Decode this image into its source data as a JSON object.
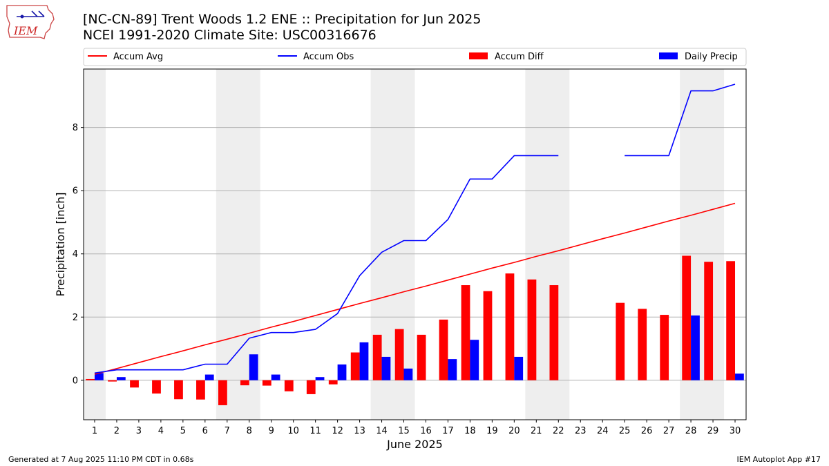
{
  "header": {
    "title_line1": "[NC-CN-89] Trent Woods 1.2 ENE :: Precipitation for Jun 2025",
    "title_line2": "NCEI 1991-2020 Climate Site: USC00316676",
    "logo_text": "IEM"
  },
  "footer": {
    "left": "Generated at 7 Aug 2025 11:10 PM CDT in 0.68s",
    "right": "IEM Autoplot App #17"
  },
  "colors": {
    "accum_avg": "#ff0000",
    "accum_obs": "#0000ff",
    "accum_diff": "#ff0000",
    "daily_precip": "#0000ff",
    "weekend_shade": "#eeeeee",
    "grid": "#b0b0b0"
  },
  "chart_data": {
    "type": "bar",
    "xlabel": "June 2025",
    "ylabel": "Precipitation [inch]",
    "xlim": [
      0.5,
      30.5
    ],
    "ylim": [
      -1.25,
      9.85
    ],
    "yticks": [
      0,
      2,
      4,
      6,
      8
    ],
    "x": [
      1,
      2,
      3,
      4,
      5,
      6,
      7,
      8,
      9,
      10,
      11,
      12,
      13,
      14,
      15,
      16,
      17,
      18,
      19,
      20,
      21,
      22,
      23,
      24,
      25,
      26,
      27,
      28,
      29,
      30
    ],
    "x_tick_labels": [
      "1",
      "2",
      "3",
      "4",
      "5",
      "6",
      "7",
      "8",
      "9",
      "10",
      "11",
      "12",
      "13",
      "14",
      "15",
      "16",
      "17",
      "18",
      "19",
      "20",
      "21",
      "22",
      "23",
      "24",
      "25",
      "26",
      "27",
      "28",
      "29",
      "30"
    ],
    "grid": "horizontal",
    "legend_position": "top",
    "weekend_shading": [
      [
        0.5,
        1.5
      ],
      [
        6.5,
        8.5
      ],
      [
        13.5,
        15.5
      ],
      [
        20.5,
        22.5
      ],
      [
        27.5,
        29.5
      ]
    ],
    "series": [
      {
        "name": "Accum Avg",
        "kind": "line",
        "values": [
          0.19,
          0.37,
          0.56,
          0.75,
          0.93,
          1.12,
          1.3,
          1.49,
          1.68,
          1.86,
          2.05,
          2.24,
          2.43,
          2.61,
          2.8,
          2.98,
          3.17,
          3.36,
          3.55,
          3.73,
          3.92,
          4.1,
          4.29,
          4.48,
          4.66,
          4.85,
          5.04,
          5.22,
          5.41,
          5.6
        ]
      },
      {
        "name": "Accum Obs",
        "kind": "line",
        "values": [
          0.23,
          0.33,
          0.33,
          0.33,
          0.33,
          0.51,
          0.51,
          1.33,
          1.51,
          1.51,
          1.61,
          2.11,
          3.31,
          4.05,
          4.42,
          4.42,
          5.09,
          6.37,
          6.37,
          7.11,
          7.11,
          7.11,
          null,
          null,
          7.11,
          7.11,
          7.11,
          9.16,
          9.16,
          9.37
        ]
      },
      {
        "name": "Accum Diff",
        "kind": "bar",
        "values": [
          0.04,
          -0.04,
          -0.23,
          -0.42,
          -0.6,
          -0.61,
          -0.79,
          -0.16,
          -0.17,
          -0.35,
          -0.44,
          -0.13,
          0.88,
          1.44,
          1.62,
          1.44,
          1.92,
          3.01,
          2.82,
          3.38,
          3.19,
          3.01,
          null,
          null,
          2.45,
          2.26,
          2.07,
          3.94,
          3.75,
          3.77
        ]
      },
      {
        "name": "Daily Precip",
        "kind": "bar",
        "values": [
          0.23,
          0.1,
          0,
          0,
          0,
          0.18,
          0,
          0.82,
          0.18,
          0,
          0.1,
          0.5,
          1.2,
          0.74,
          0.37,
          0,
          0.67,
          1.28,
          0,
          0.74,
          0,
          0,
          null,
          null,
          0,
          0,
          0,
          2.05,
          0,
          0.21
        ]
      }
    ]
  }
}
